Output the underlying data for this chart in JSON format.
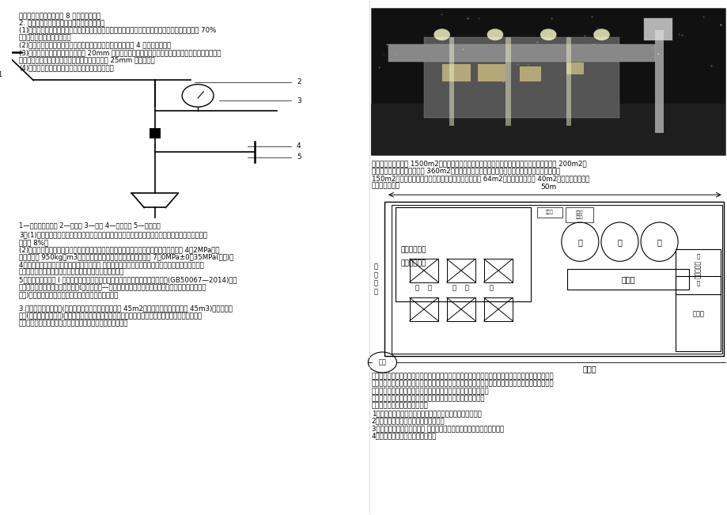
{
  "bg_color": "#ffffff",
  "page_width": 9.2,
  "page_height": 6.51,
  "font_size": 6.2,
  "left_col_texts": [
    "综上，本建筑物至少需要 8 个湿式报警阀。",
    "2. 湿式自动喷水灭火系统设置存在以下问题：",
    "(1)吊顶场所的喷头设置安装在格栅之间和格栅的锯口上。原因：通透面积占吊顶总面积的比例大于 70%",
    "时，喷头应设置在吊顶上方。",
    "(2)气压给水设备只设一只电接点压力表。原因：气压罐应设置 4 个压力控制点。",
    "(3)其他防火分区、楼层均设直径为 20mm 的试水阀。原因：每个报警阀组控制的最不利点喷头处，应设",
    "末端试水装置，其他防火分区、楼层均应设直径为 25mm 的试水阀。",
    "(4)末端试水装置安装错误，正确安装方法如下图："
  ],
  "diagram_label": "1—最不利点处喷头 2—压力表 3—球阀 4—试水接头 5—排水漏斗",
  "left_body_texts": [
    "3．(1)问题一：气体灭火设计浓度不对。整改措施：通信机房和电子计算机房等防护区，灭火设计浓度",
    "宜采用 8%。",
    "(2)问题二：集流管上的安全泄压装置的动作压力不正确。整改措施：储存容器增压压力为 4．2MPa，最",
    "大充装量为 950kg／m3，集流管上的安全泄压装置的动作压力为 7．0MPa±0．35MPa(表压)。",
    "4．气体灭火系统功能验收内容包括四个方面 模拟启动试验，模拟喷气试验，对设有灭火剂备用量的系",
    "统进行模拟切换操作试验，对主、备用电源进行切换试验。",
    "5．本地下汽车库是 I 类汽车库。按照《汽车库、修车库、停车场设计防火规范》(GB50067—2014)，应",
    "设置室内外消火栓、自动灭火系统(可以是泡沫—水喷淋系统、高倍数泡沫灭火系统、湿式自动喷水灭火",
    "系统)、排烟系统、应急照明和疏散指示系统、灭火器。"
  ],
  "case3_texts": [
    "3.某加油站站内设罐区(内设埋地汽油罐两台，单罐容积 45m2；柴油罐一台，单罐容积 45m3)、站房、加",
    "油区(设十台单枪加油机)。该加油站是中国石油天然气股份有限公司下属的一座加油站。加油站正在逐",
    "步发展，各方面逐渐趋于成熟。加油站整体外观如下图所示。"
  ],
  "right_desc_texts": [
    "加油站的总建筑面积 1500m2。西面由加油区、工作生活区、储油区和卸油区组成。加油区占地 200m2；",
    "工作生活区分为两层楼，占地 360m2，一楼为工作区，二楼为员工生活区；储油区和卸油区各占地",
    "150m2。东面由便利店和自动洗车房组成，便利店占地 64m2，自动洗车房占地 40m2。加油站布局示意",
    "图如下图所示。"
  ],
  "right_bottom_texts": [
    "单位组建了消防安全组织机构，并且设有专职消防队。安全技术部作为该单位消防安全工作归口管理部",
    "门，并层层确定了消防安全责任人和消防安全管理人员。该单位还成立了义务消防队，并在灭火预案中",
    "明确了灭火行动组、通信联络组、疏散引导组、安全防护救护组。",
    "单位建立健全了消防安全管理制度和保障消防安全的操作规程。",
    "根据以上材料，回答下列问题：",
    "1．针对本项目特点及国家规范要求，请简述消防目标要求。",
    "2．单位消防安全制度主要包括哪些内容",
    "3．什么是消防安全重点单位 本案例中的加油站属于消防安全重点单位吗",
    "4．简述消防安全重点单位的职责。"
  ]
}
